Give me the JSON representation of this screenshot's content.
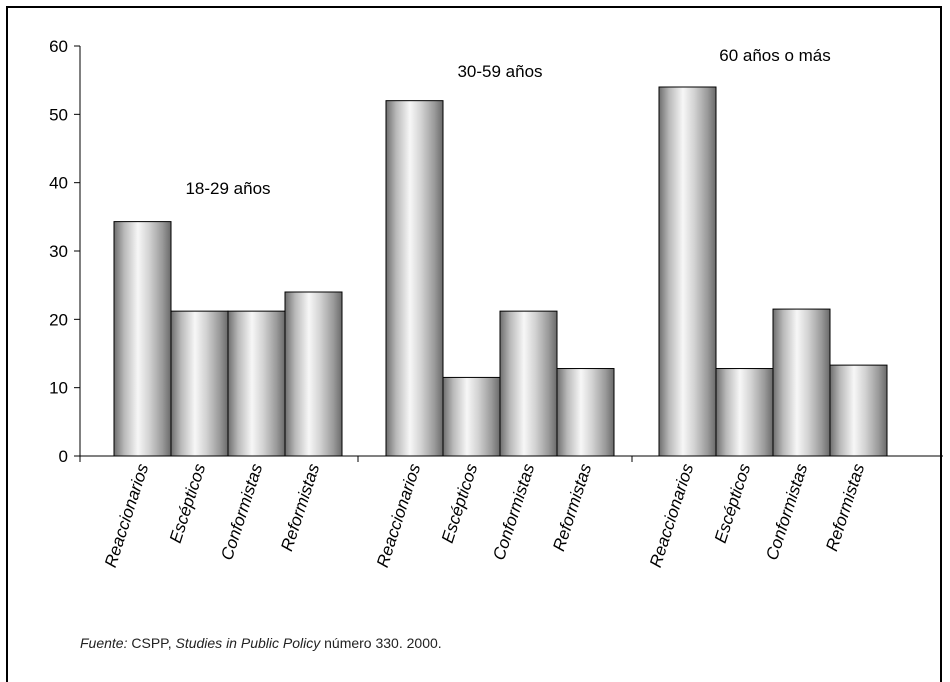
{
  "chart_data": {
    "type": "bar",
    "groups": [
      {
        "label": "18-29 años",
        "categories": [
          "Reaccionarios",
          "Escépticos",
          "Conformistas",
          "Reformistas"
        ],
        "values": [
          34.3,
          21.2,
          21.2,
          24.0
        ]
      },
      {
        "label": "30-59 años",
        "categories": [
          "Reaccionarios",
          "Escépticos",
          "Conformistas",
          "Reformistas"
        ],
        "values": [
          52.0,
          11.5,
          21.2,
          12.8
        ]
      },
      {
        "label": "60 años o más",
        "categories": [
          "Reaccionarios",
          "Escépticos",
          "Conformistas",
          "Reformistas"
        ],
        "values": [
          54.0,
          12.8,
          21.5,
          13.3
        ]
      }
    ],
    "ylim": [
      0,
      60
    ],
    "yticks": [
      0,
      10,
      20,
      30,
      40,
      50,
      60
    ],
    "grid": false,
    "bar_style": "silver-gradient"
  },
  "source": {
    "prefix": "Fuente:",
    "org": " CSPP, ",
    "title": "Studies in Public Policy",
    "suffix": " número 330. 2000."
  }
}
